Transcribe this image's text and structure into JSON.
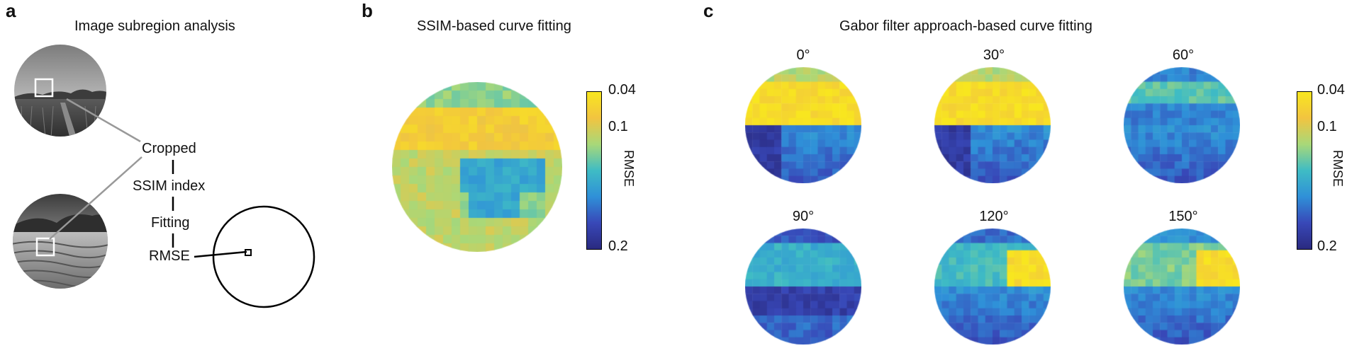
{
  "panels": {
    "a": {
      "letter": "a",
      "title": "Image subregion analysis",
      "flow_steps": [
        "Cropped",
        "SSIM index",
        "Fitting",
        "RMSE"
      ],
      "images": [
        "grassland-photo",
        "desert-dunes-photo"
      ]
    },
    "b": {
      "letter": "b",
      "title": "SSIM-based curve fitting"
    },
    "c": {
      "letter": "c",
      "title": "Gabor filter approach-based curve fitting",
      "angles": [
        "0°",
        "30°",
        "60°",
        "90°",
        "120°",
        "150°"
      ]
    }
  },
  "colorbar": {
    "label": "RMSE",
    "ticks": [
      "0.04",
      "0.1",
      "0.2"
    ],
    "colors": [
      "#f8e61f",
      "#f2c440",
      "#a8d879",
      "#3fbcc4",
      "#2f90d8",
      "#3848b8",
      "#2a2a80"
    ]
  },
  "chart_data": {
    "type": "heatmap",
    "scale": "log",
    "value_label": "RMSE",
    "range": [
      0.04,
      0.2
    ],
    "maps": [
      "SSIM",
      "Gabor 0°",
      "Gabor 30°",
      "Gabor 60°",
      "Gabor 90°",
      "Gabor 120°",
      "Gabor 150°"
    ]
  }
}
